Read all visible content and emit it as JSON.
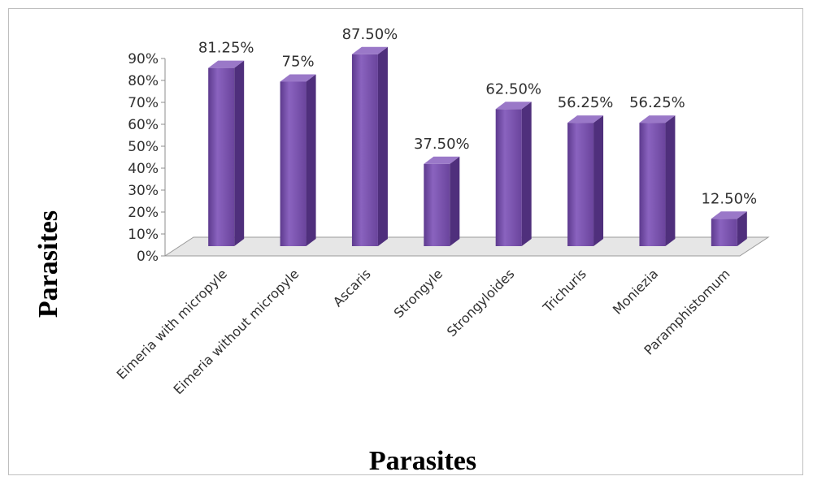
{
  "chart_data": {
    "type": "bar",
    "title": "",
    "xlabel": "Parasites",
    "ylabel": "Parasites",
    "categories": [
      "Eimeria with micropyle",
      "Eimeria without micropyle",
      "Ascaris",
      "Strongyle",
      "Strongyloides",
      "Trichuris",
      "Moniezia",
      "Paramphistomum"
    ],
    "values": [
      81.25,
      75,
      87.5,
      37.5,
      62.5,
      56.25,
      56.25,
      12.5
    ],
    "data_labels": [
      "81.25%",
      "75%",
      "87.50%",
      "37.50%",
      "62.50%",
      "56.25%",
      "56.25%",
      "12.50%"
    ],
    "yticks": [
      "0%",
      "10%",
      "20%",
      "30%",
      "40%",
      "50%",
      "60%",
      "70%",
      "80%",
      "90%"
    ],
    "ylim": [
      0,
      90
    ],
    "grid": false,
    "legend": "none",
    "style": "3d-cylinder-bars",
    "bar_color": "#7b52ae"
  }
}
